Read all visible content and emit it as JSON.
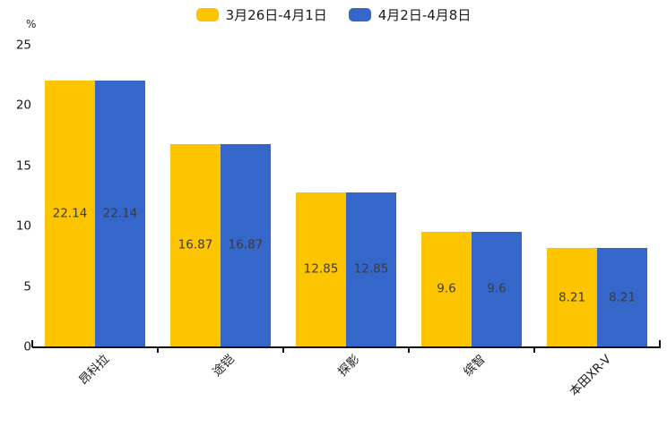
{
  "legend": {
    "items": [
      {
        "label": "3月26日-4月1日",
        "color": "#FDC500"
      },
      {
        "label": "4月2日-4月8日",
        "color": "#3566C9"
      }
    ]
  },
  "axis": {
    "unit_label": "%"
  },
  "chart_data": {
    "type": "bar",
    "title": "",
    "xlabel": "",
    "ylabel": "%",
    "categories": [
      "昂科拉",
      "途铠",
      "探影",
      "缤智",
      "本田XR-V"
    ],
    "series": [
      {
        "name": "3月26日-4月1日",
        "color": "#FDC500",
        "values": [
          22.14,
          16.87,
          12.85,
          9.6,
          8.21
        ]
      },
      {
        "name": "4月2日-4月8日",
        "color": "#3566C9",
        "values": [
          22.14,
          16.87,
          12.85,
          9.6,
          8.21
        ]
      }
    ],
    "value_labels": [
      [
        "22.14",
        "16.87",
        "12.85",
        "9.6",
        "8.21"
      ],
      [
        "22.14",
        "16.87",
        "12.85",
        "9.6",
        "8.21"
      ]
    ],
    "ylim": [
      0,
      25
    ],
    "yticks": [
      0,
      5,
      10,
      15,
      20,
      25
    ],
    "grid": false,
    "legend_position": "top",
    "bar_label_position": "center"
  }
}
